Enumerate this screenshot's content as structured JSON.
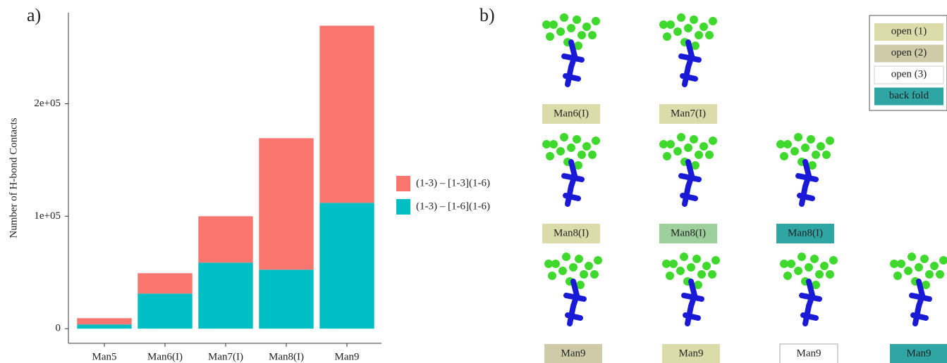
{
  "panel_labels": [
    "a)",
    "b)"
  ],
  "chart_data": {
    "type": "stacked_bar",
    "y_label": "Number of H-bond Contacts",
    "categories": [
      "Man5",
      "Man6(I)",
      "Man7(I)",
      "Man8(I)",
      "Man9"
    ],
    "series": [
      {
        "name": "(1-3) – [1-3](1-6)",
        "color": "#f8766d",
        "values": [
          5600,
          18100,
          41250,
          116900,
          157500
        ]
      },
      {
        "name": "(1-3) – [1-6](1-6)",
        "color": "#00bfc4",
        "values": [
          3750,
          31250,
          58750,
          52500,
          111900
        ]
      }
    ],
    "ylim": [
      -13000,
      281000
    ],
    "yticks": [
      0,
      {
        "value": 100000,
        "label": "1e+05"
      },
      {
        "value": 200000,
        "label": "2e+05"
      }
    ],
    "legend": "right"
  },
  "structures": [
    {
      "label": "Man6(I)",
      "color": "#dcdcab"
    },
    {
      "label": "Man7(I)",
      "color": "#dcdcab"
    },
    {
      "label": "Man8(I)",
      "color": "#dcdcab"
    },
    {
      "label": "Man8(I)",
      "color": "#9dd09d"
    },
    {
      "label": "Man8(I)",
      "color": "#2fa6a4"
    },
    {
      "label": "Man9",
      "color": "#cfcba9"
    },
    {
      "label": "Man9",
      "color": "#dcdcab"
    },
    {
      "label": "Man9",
      "color": "#ffffff"
    },
    {
      "label": "Man9",
      "color": "#2fa6a4"
    }
  ],
  "structure_legend": [
    {
      "label": "open (1)",
      "color": "#dcdcab"
    },
    {
      "label": "open (2)",
      "color": "#cfcba9"
    },
    {
      "label": "open (3)",
      "color": "#ffffff"
    },
    {
      "label": "back fold",
      "color": "#2fa6a4"
    }
  ]
}
